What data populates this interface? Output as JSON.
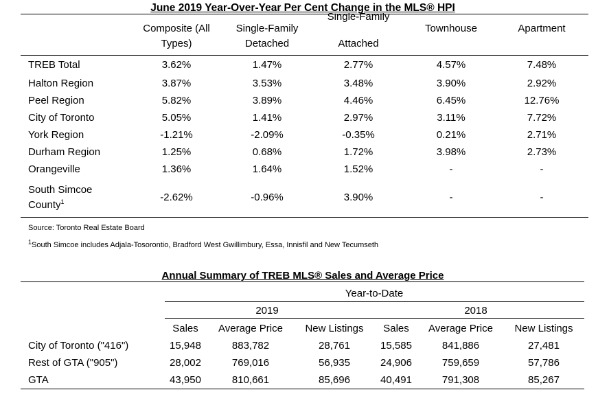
{
  "table1": {
    "title": "June 2019 Year-Over-Year Per Cent Change in the MLS® HPI",
    "headers": [
      [
        "Composite (All",
        "Types)"
      ],
      [
        "Single-Family",
        "Detached"
      ],
      [
        "Single-Family",
        "Attached"
      ],
      [
        "Townhouse"
      ],
      [
        "Apartment"
      ]
    ],
    "rows": [
      {
        "region": "TREB Total",
        "values": [
          "3.62%",
          "1.47%",
          "2.77%",
          "4.57%",
          "7.48%"
        ]
      },
      {
        "region": "Halton Region",
        "values": [
          "3.87%",
          "3.53%",
          "3.48%",
          "3.90%",
          "2.92%"
        ]
      },
      {
        "region": "Peel Region",
        "values": [
          "5.82%",
          "3.89%",
          "4.46%",
          "6.45%",
          "12.76%"
        ]
      },
      {
        "region": "City of Toronto",
        "values": [
          "5.05%",
          "1.41%",
          "2.97%",
          "3.11%",
          "7.72%"
        ]
      },
      {
        "region": "York Region",
        "values": [
          "-1.21%",
          "-2.09%",
          "-0.35%",
          "0.21%",
          "2.71%"
        ]
      },
      {
        "region": "Durham Region",
        "values": [
          "1.25%",
          "0.68%",
          "1.72%",
          "3.98%",
          "2.73%"
        ]
      },
      {
        "region": "Orangeville",
        "values": [
          "1.36%",
          "1.64%",
          "1.52%",
          "-",
          "-"
        ]
      },
      {
        "region_lines": [
          "South Simcoe",
          "County"
        ],
        "region_sup": "1",
        "values": [
          "-2.62%",
          "-0.96%",
          "3.90%",
          "-",
          "-"
        ]
      }
    ]
  },
  "notes": {
    "source": "Source: Toronto Real Estate Board",
    "footnote_mark": "1",
    "footnote": "South Simcoe includes Adjala-Tosorontio, Bradford West Gwillimbury, Essa, Innisfil and New Tecumseth"
  },
  "table2": {
    "title": "Annual Summary of TREB MLS® Sales and Average Price",
    "subtitle": "Year-to-Date",
    "year_a": "2019",
    "year_b": "2018",
    "columns": [
      "Sales",
      "Average Price",
      "New Listings",
      "Sales",
      "Average Price",
      "New Listings"
    ],
    "rows": [
      {
        "label": "City of Toronto (\"416\")",
        "values": [
          "15,948",
          "883,782",
          "28,761",
          "15,585",
          "841,886",
          "27,481"
        ]
      },
      {
        "label": "Rest of GTA (\"905\")",
        "values": [
          "28,002",
          "769,016",
          "56,935",
          "24,906",
          "759,659",
          "57,786"
        ]
      },
      {
        "label": "GTA",
        "values": [
          "43,950",
          "810,661",
          "85,696",
          "40,491",
          "791,308",
          "85,267"
        ]
      }
    ]
  }
}
